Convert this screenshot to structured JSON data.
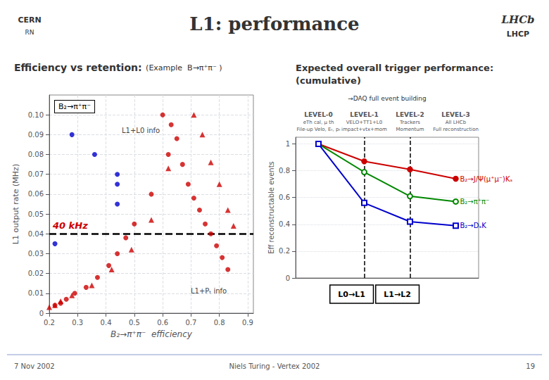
{
  "chart_data": [
    {
      "type": "scatter",
      "title": "L1: performance",
      "subtitle": "Efficiency vs retention:",
      "annotations": [
        " (Example  B→π⁺π⁻ )",
        "B₂→π⁺π⁻",
        "L1+L0 info",
        "L1+Pₜ info",
        "CERN",
        "RN",
        "LHCb",
        "LHCP",
        "7 Nov 2002",
        "Niels Turing - Vertex 2002",
        "19"
      ],
      "xlabel": "B₂→π⁺π⁻  efficiency",
      "ylabel": "L1 output rate (MHz)",
      "xlim": [
        0.2,
        0.92
      ],
      "xticks": [
        0.2,
        0.3,
        0.4,
        0.5,
        0.6,
        0.7,
        0.8,
        0.9
      ],
      "ylim": [
        0,
        0.11
      ],
      "yticks": [
        0,
        0.01,
        0.02,
        0.03,
        0.04,
        0.05,
        0.06,
        0.07,
        0.08,
        0.09,
        {
          "value": 0.1,
          "label": "0.10"
        }
      ],
      "grid": true,
      "reference_lines": [
        {
          "y": 0.04,
          "label": "40 kHz",
          "color": "#cc0000"
        }
      ],
      "series": [
        {
          "color": "#0000cc",
          "marker": "circle",
          "x": [
            0.28,
            0.36,
            0.44,
            0.44,
            0.44,
            0.22
          ],
          "values": [
            0.09,
            0.08,
            0.07,
            0.065,
            0.055,
            0.035
          ]
        },
        {
          "color": "#cc0000",
          "marker": "circle",
          "x": [
            0.6,
            0.63,
            0.65,
            0.67,
            0.69,
            0.71,
            0.73,
            0.75,
            0.77,
            0.79,
            0.81,
            0.83,
            0.62,
            0.56,
            0.5,
            0.47,
            0.44,
            0.41,
            0.37,
            0.33,
            0.29,
            0.26,
            0.24,
            0.22
          ],
          "values": [
            0.1,
            0.095,
            0.088,
            0.075,
            0.065,
            0.058,
            0.052,
            0.045,
            0.04,
            0.034,
            0.028,
            0.022,
            0.08,
            0.06,
            0.045,
            0.038,
            0.03,
            0.024,
            0.018,
            0.013,
            0.01,
            0.007,
            0.005,
            0.004
          ]
        },
        {
          "color": "#cc0000",
          "marker": "triangle",
          "x": [
            0.71,
            0.74,
            0.77,
            0.8,
            0.83,
            0.85,
            0.62,
            0.56,
            0.49,
            0.42,
            0.35,
            0.28,
            0.24,
            0.22,
            0.2
          ],
          "values": [
            0.1,
            0.09,
            0.076,
            0.065,
            0.052,
            0.044,
            0.073,
            0.047,
            0.032,
            0.022,
            0.014,
            0.009,
            0.006,
            0.004,
            0.003
          ]
        }
      ]
    },
    {
      "type": "line",
      "title": "Expected overall trigger performance:",
      "subtitle": "(cumulative)",
      "annotations": [
        "→DAQ full event building",
        "L0→L1",
        "L1→L2"
      ],
      "categories": [
        "LEVEL-0\neTh cal, μ th\nFile-up Velo, Eₜ, pₜ",
        "LEVEL-1\nVELO+TT1+L0\nimpact+vtx+mom",
        "LEVEL-2\nTrackers\nMomentum",
        "LEVEL-3\nAll LHCb\nFull reconstruction"
      ],
      "ylabel": "Eff reconstructable events",
      "ylim": [
        0,
        1.05
      ],
      "yticks": [
        0,
        0.2,
        0.4,
        0.6,
        0.8,
        1
      ],
      "grid": true,
      "reference_lines": [
        {
          "x": 1
        },
        {
          "x": 2
        }
      ],
      "series": [
        {
          "name": "B₂→J/Ψ(μ⁺μ⁻)Kₛ",
          "color": "#cc0000",
          "marker": "circle",
          "values": [
            1.0,
            0.87,
            0.81,
            0.74
          ]
        },
        {
          "name": "B₂→π⁺π⁻",
          "color": "#008800",
          "marker": "open_circle",
          "values": [
            1.0,
            0.79,
            0.61,
            0.57
          ]
        },
        {
          "name": "B₂→DₛK",
          "color": "#0000cc",
          "marker": "open_square",
          "values": [
            1.0,
            0.56,
            0.42,
            0.39
          ]
        }
      ]
    }
  ]
}
